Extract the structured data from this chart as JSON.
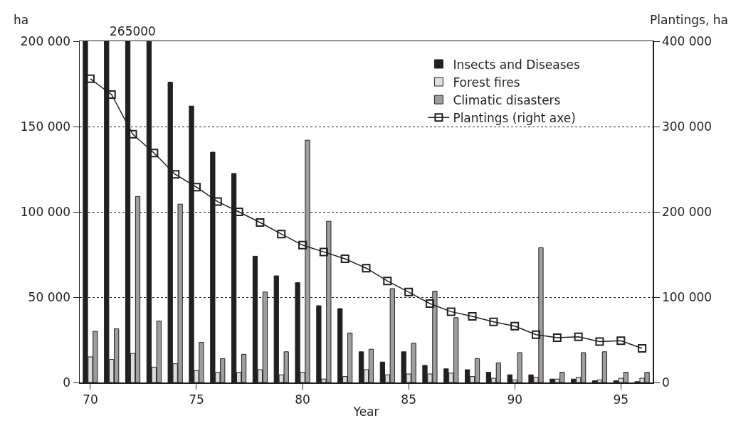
{
  "chart_data": {
    "type": "bar",
    "xlabel": "Year",
    "ylabel": "ha",
    "y2label": "Plantings, ha",
    "x": [
      70,
      71,
      72,
      73,
      74,
      75,
      76,
      77,
      78,
      79,
      80,
      81,
      82,
      83,
      84,
      85,
      86,
      87,
      88,
      89,
      90,
      91,
      92,
      93,
      94,
      95,
      96
    ],
    "xlim": [
      69.5,
      96.5
    ],
    "xticks": [
      70,
      75,
      80,
      85,
      90,
      95
    ],
    "ylim": [
      0,
      200000
    ],
    "yticks": [
      0,
      {
        "value": 50000,
        "label": "50 000"
      },
      {
        "value": 100000,
        "label": "100 000"
      },
      {
        "value": 150000,
        "label": "150 000"
      },
      {
        "value": 200000,
        "label": "200 000"
      }
    ],
    "y2lim": [
      0,
      400000
    ],
    "y2ticks": [
      0,
      {
        "value": 100000,
        "label": "100 000"
      },
      {
        "value": 200000,
        "label": "200 000"
      },
      {
        "value": 300000,
        "label": "300 000"
      },
      {
        "value": 400000,
        "label": "400 000"
      }
    ],
    "grid": "y",
    "legend": "top right",
    "series": [
      {
        "name": "Insects and Diseases",
        "color": "#231f20",
        "values": [
          200000,
          200000,
          200000,
          200000,
          176000,
          162000,
          135000,
          122500,
          74000,
          62500,
          58500,
          45000,
          43300,
          18000,
          12000,
          18000,
          10000,
          8000,
          7500,
          6000,
          4500,
          4500,
          2000,
          2000,
          1000,
          1000,
          500
        ]
      },
      {
        "name": "Forest fires",
        "color": "#dcdddf",
        "values": [
          15000,
          13500,
          17000,
          9000,
          11000,
          7000,
          6000,
          6000,
          7500,
          4500,
          6000,
          2000,
          3500,
          7500,
          4500,
          5000,
          5000,
          5500,
          3500,
          2500,
          1500,
          3000,
          2000,
          3000,
          1500,
          2500,
          2500
        ]
      },
      {
        "name": "Climatic disasters",
        "color": "#9c9ea1",
        "values": [
          30000,
          31500,
          109000,
          36000,
          104500,
          23500,
          14000,
          16500,
          53000,
          18000,
          142000,
          94500,
          29000,
          19500,
          55000,
          23000,
          53500,
          38000,
          14000,
          11500,
          17500,
          79000,
          6000,
          17500,
          18000,
          6000,
          6000
        ]
      },
      {
        "name": "Plantings (right axe)",
        "type": "line",
        "axis": "y2",
        "color": "#231f20",
        "marker": "square",
        "line_style": "solid",
        "values": [
          356000,
          337500,
          291000,
          269000,
          244000,
          229000,
          212000,
          200000,
          187500,
          174000,
          161000,
          153000,
          145000,
          134000,
          119000,
          106000,
          92500,
          83000,
          77500,
          71000,
          66000,
          56000,
          52500,
          53500,
          48000,
          49000,
          40000
        ]
      }
    ],
    "annotations": [
      {
        "text": "265000",
        "x": 72,
        "y": 200000
      }
    ]
  }
}
